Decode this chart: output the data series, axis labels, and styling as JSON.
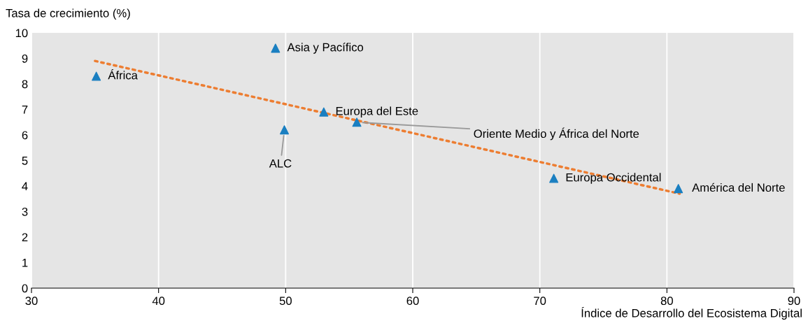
{
  "chart_data": {
    "type": "scatter",
    "xlabel": "Índice de Desarrollo del Ecosistema Digital",
    "ylabel": "Tasa de crecimiento (%)",
    "xlim": [
      30,
      90
    ],
    "xticks": [
      30,
      40,
      50,
      60,
      70,
      80,
      90
    ],
    "ylim": [
      0,
      10
    ],
    "yticks": [
      0,
      1,
      2,
      3,
      4,
      5,
      6,
      7,
      8,
      9,
      10
    ],
    "grid": "x",
    "marker": "triangle",
    "series": [
      {
        "color": "#1a7fc1",
        "x": [
          35.1,
          49.2,
          53.0,
          55.6,
          49.9,
          71.1,
          80.9
        ],
        "values": [
          8.3,
          9.4,
          6.9,
          6.5,
          6.2,
          4.3,
          3.9
        ]
      },
      {
        "type": "line",
        "color": "#ed7d31",
        "line_style": "dotted",
        "marker": "none",
        "x": [
          35,
          81
        ],
        "values": [
          8.9,
          3.7
        ]
      }
    ],
    "annotations": [
      {
        "text": "África",
        "x": 35.1,
        "y": 8.3
      },
      {
        "text": "Asia y Pacífico",
        "x": 49.2,
        "y": 9.4
      },
      {
        "text": "Europa del Este",
        "x": 53.0,
        "y": 6.9
      },
      {
        "text": "Oriente Medio y África del Norte",
        "x": 55.6,
        "y": 6.5
      },
      {
        "text": "ALC",
        "x": 49.9,
        "y": 6.2
      },
      {
        "text": "Europa Occidental",
        "x": 71.1,
        "y": 4.3
      },
      {
        "text": "América del Norte",
        "x": 80.9,
        "y": 3.9
      }
    ]
  }
}
